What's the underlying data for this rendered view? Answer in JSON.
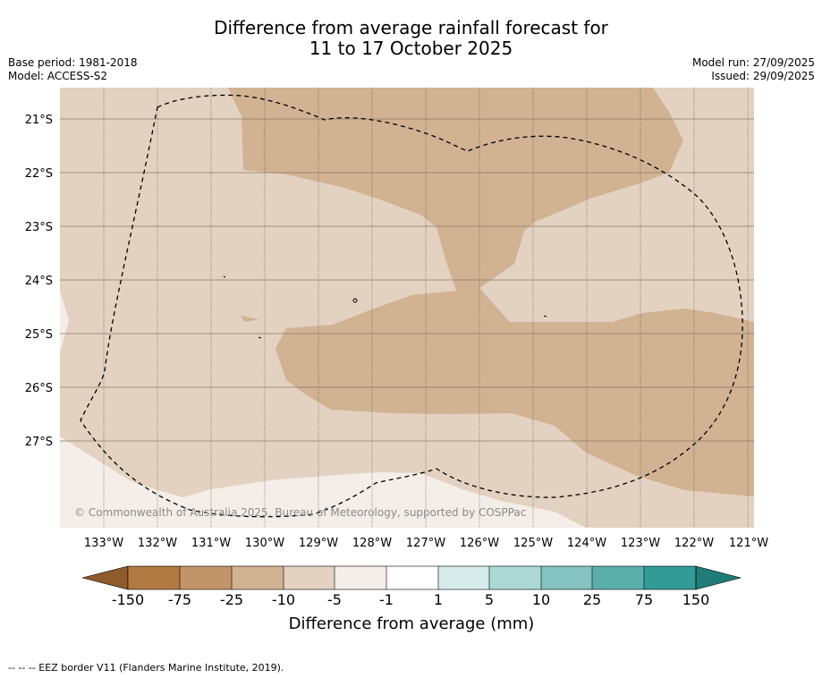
{
  "title": {
    "line1": "Difference from average rainfall forecast for",
    "line2": "11 to 17 October 2025"
  },
  "meta": {
    "base_period": "Base period: 1981-2018",
    "model": "Model: ACCESS-S2",
    "model_run": "Model run: 27/09/2025",
    "issued": "Issued: 29/09/2025"
  },
  "map": {
    "lon_labels": [
      "133°W",
      "132°W",
      "131°W",
      "130°W",
      "129°W",
      "128°W",
      "127°W",
      "126°W",
      "125°W",
      "124°W",
      "123°W",
      "122°W",
      "121°W"
    ],
    "lat_labels": [
      "21°S",
      "22°S",
      "23°S",
      "24°S",
      "25°S",
      "26°S",
      "27°S"
    ],
    "copyright": "© Commonwealth of Australia 2025, Bureau of Meteorology, supported by COSPPac",
    "colors": {
      "light_tan": "#e3d2c1",
      "mid_tan": "#d1b292",
      "near_white": "#f5ede7",
      "eez_line": "#000000",
      "grid": "#555555"
    }
  },
  "colorbar": {
    "ticks": [
      "-150",
      "-75",
      "-25",
      "-10",
      "-5",
      "-1",
      "1",
      "5",
      "10",
      "25",
      "75",
      "150"
    ],
    "colors": [
      "#b07a42",
      "#c2946a",
      "#d1b292",
      "#e3d2c1",
      "#f5ede7",
      "#ffffff",
      "#d6ebea",
      "#acd8d6",
      "#84c3c0",
      "#5bafab",
      "#339b96"
    ],
    "low_extend_color": "#8f5b2c",
    "high_extend_color": "#1f7c78",
    "label": "Difference from average (mm)"
  },
  "footnote": "-- -- -- EEZ border V11 (Flanders Marine Institute, 2019)."
}
